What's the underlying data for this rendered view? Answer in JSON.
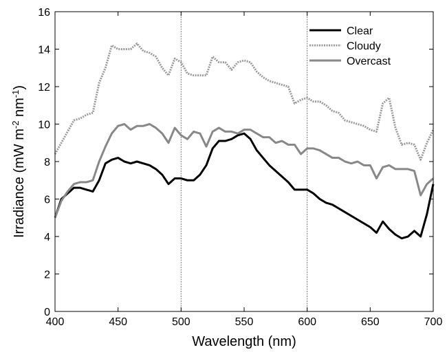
{
  "chart_data": {
    "type": "line",
    "xlabel": "Wavelength (nm)",
    "ylabel_parts": [
      "Irradiance (mW m",
      "-2",
      " nm",
      "-1",
      ")"
    ],
    "x": [
      400,
      405,
      410,
      415,
      420,
      425,
      430,
      435,
      440,
      445,
      450,
      455,
      460,
      465,
      470,
      475,
      480,
      485,
      490,
      495,
      500,
      505,
      510,
      515,
      520,
      525,
      530,
      535,
      540,
      545,
      550,
      555,
      560,
      565,
      570,
      575,
      580,
      585,
      590,
      595,
      600,
      605,
      610,
      615,
      620,
      625,
      630,
      635,
      640,
      645,
      650,
      655,
      660,
      665,
      670,
      675,
      680,
      685,
      690,
      695,
      700
    ],
    "series": [
      {
        "name": "Clear",
        "color": "#000000",
        "style": "solid",
        "values": [
          5.0,
          6.0,
          6.3,
          6.6,
          6.6,
          6.5,
          6.4,
          7.0,
          7.9,
          8.1,
          8.2,
          8.0,
          7.9,
          8.0,
          7.9,
          7.8,
          7.6,
          7.3,
          6.8,
          7.1,
          7.1,
          7.0,
          7.0,
          7.3,
          7.8,
          8.7,
          9.1,
          9.1,
          9.2,
          9.4,
          9.5,
          9.2,
          8.6,
          8.2,
          7.8,
          7.5,
          7.2,
          6.9,
          6.5,
          6.5,
          6.5,
          6.3,
          6.0,
          5.8,
          5.7,
          5.5,
          5.3,
          5.1,
          4.9,
          4.7,
          4.5,
          4.2,
          4.8,
          4.4,
          4.1,
          3.9,
          4.0,
          4.3,
          4.0,
          5.2,
          6.8
        ]
      },
      {
        "name": "Cloudy",
        "color": "#9a9a9a",
        "style": "dotted",
        "values": [
          8.4,
          9.0,
          9.6,
          10.2,
          10.3,
          10.5,
          10.6,
          12.2,
          13.0,
          14.2,
          14.0,
          14.0,
          14.0,
          14.3,
          13.9,
          13.8,
          13.6,
          13.0,
          12.6,
          13.5,
          13.3,
          12.7,
          12.6,
          12.6,
          12.6,
          13.6,
          13.3,
          13.3,
          12.9,
          13.3,
          13.4,
          13.3,
          12.8,
          12.5,
          12.3,
          12.2,
          12.1,
          12.0,
          11.1,
          11.3,
          11.4,
          11.2,
          11.2,
          11.0,
          10.7,
          10.6,
          10.2,
          10.1,
          10.0,
          9.9,
          9.7,
          9.6,
          11.1,
          11.4,
          9.8,
          8.9,
          9.0,
          8.9,
          8.1,
          9.0,
          9.7
        ]
      },
      {
        "name": "Overcast",
        "color": "#888888",
        "style": "solid",
        "values": [
          5.0,
          5.9,
          6.4,
          6.8,
          6.9,
          6.9,
          7.0,
          8.0,
          8.8,
          9.5,
          9.9,
          10.0,
          9.7,
          9.9,
          9.9,
          10.0,
          9.8,
          9.5,
          9.0,
          9.8,
          9.4,
          9.2,
          9.6,
          9.5,
          8.8,
          9.6,
          9.8,
          9.6,
          9.6,
          9.5,
          9.7,
          9.7,
          9.5,
          9.3,
          9.3,
          9.0,
          9.1,
          8.9,
          8.9,
          8.4,
          8.7,
          8.7,
          8.6,
          8.4,
          8.2,
          8.2,
          8.0,
          7.9,
          8.0,
          7.8,
          7.8,
          7.1,
          7.7,
          7.8,
          7.6,
          7.6,
          7.6,
          7.5,
          6.2,
          6.8,
          7.1
        ]
      }
    ],
    "xlim": [
      400,
      700
    ],
    "xticks": [
      400,
      450,
      500,
      550,
      600,
      650,
      700
    ],
    "ylim": [
      0,
      16
    ],
    "yticks": [
      0,
      2,
      4,
      6,
      8,
      10,
      12,
      14,
      16
    ],
    "vlines": [
      500,
      600
    ],
    "legend": "upper right"
  }
}
